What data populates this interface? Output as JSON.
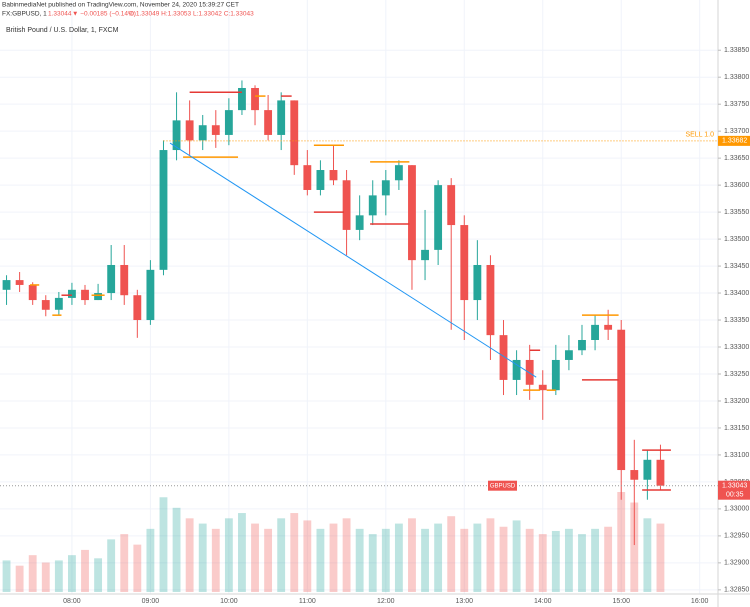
{
  "header": {
    "published": "BabinmediaNet published on TradingView.com, November 24, 2020 15:39:27 CET",
    "symbol": "FX:GBPUSD, 1",
    "price": "1.33044",
    "change": "▼ −0.00185 (−0.14%)",
    "ohlc": "O:1.33049 H:1.33053 L:1.33042 C:1.33043"
  },
  "chart_data": {
    "type": "candlestick",
    "title": "British Pound / U.S. Dollar, 1, FXCM",
    "x": [
      "07:10",
      "07:20",
      "07:30",
      "07:40",
      "07:50",
      "08:00",
      "08:10",
      "08:20",
      "08:30",
      "08:40",
      "08:50",
      "09:00",
      "09:10",
      "09:20",
      "09:30",
      "09:40",
      "09:50",
      "10:00",
      "10:10",
      "10:20",
      "10:30",
      "10:40",
      "10:50",
      "11:00",
      "11:10",
      "11:20",
      "11:30",
      "11:40",
      "11:50",
      "12:00",
      "12:10",
      "12:20",
      "12:30",
      "12:40",
      "12:50",
      "13:00",
      "13:10",
      "13:20",
      "13:30",
      "13:40",
      "13:50",
      "14:00",
      "14:10",
      "14:20",
      "14:30",
      "14:40",
      "14:50",
      "15:00",
      "15:10",
      "15:20",
      "15:30"
    ],
    "open": [
      1.33406,
      1.33424,
      1.33415,
      1.33387,
      1.33369,
      1.33391,
      1.33406,
      1.33387,
      1.334,
      1.33452,
      1.33396,
      1.3335,
      1.33443,
      1.33665,
      1.3372,
      1.33683,
      1.33711,
      1.33693,
      1.33739,
      1.3378,
      1.33739,
      1.33693,
      1.33757,
      1.33637,
      1.33591,
      1.33628,
      1.33609,
      1.33517,
      1.33544,
      1.33581,
      1.33609,
      1.33637,
      1.33461,
      1.3348,
      1.336,
      1.33526,
      1.33387,
      1.33452,
      1.33322,
      1.33239,
      1.33276,
      1.3323,
      1.3322,
      1.33276,
      1.33294,
      1.33313,
      1.33341,
      1.33332,
      1.33072,
      1.33054,
      1.33091
    ],
    "high": [
      1.33433,
      1.33439,
      1.3342,
      1.33396,
      1.33402,
      1.33419,
      1.33415,
      1.33417,
      1.33489,
      1.33489,
      1.33406,
      1.33461,
      1.33683,
      1.33772,
      1.33757,
      1.3373,
      1.33739,
      1.33761,
      1.33794,
      1.33785,
      1.33767,
      1.33772,
      1.33757,
      1.33665,
      1.33646,
      1.33674,
      1.33628,
      1.33581,
      1.33609,
      1.33628,
      1.33646,
      1.33637,
      1.33554,
      1.33609,
      1.33613,
      1.33544,
      1.33498,
      1.3347,
      1.3335,
      1.33294,
      1.33304,
      1.33257,
      1.33304,
      1.33322,
      1.33341,
      1.33359,
      1.33369,
      1.3335,
      1.33128,
      1.33109,
      1.33119
    ],
    "low": [
      1.33378,
      1.33402,
      1.33378,
      1.33357,
      1.33359,
      1.33378,
      1.33378,
      1.33387,
      1.33387,
      1.33378,
      1.33317,
      1.33341,
      1.33433,
      1.33646,
      1.33656,
      1.33665,
      1.33669,
      1.33674,
      1.3373,
      1.33711,
      1.33683,
      1.33665,
      1.33619,
      1.33581,
      1.33581,
      1.336,
      1.3347,
      1.33498,
      1.33526,
      1.33544,
      1.33591,
      1.33406,
      1.33424,
      1.33452,
      1.33332,
      1.33313,
      1.3335,
      1.33276,
      1.33211,
      1.33211,
      1.33202,
      1.33165,
      1.33211,
      1.33257,
      1.33285,
      1.33294,
      1.33313,
      1.33017,
      1.32933,
      1.33017,
      1.33035
    ],
    "close": [
      1.33424,
      1.33415,
      1.33387,
      1.33369,
      1.33391,
      1.33406,
      1.33387,
      1.334,
      1.33452,
      1.33396,
      1.3335,
      1.33443,
      1.33665,
      1.3372,
      1.33683,
      1.33711,
      1.33693,
      1.33739,
      1.3378,
      1.33739,
      1.33693,
      1.33757,
      1.33637,
      1.33591,
      1.33628,
      1.33609,
      1.33517,
      1.33544,
      1.33581,
      1.33609,
      1.33637,
      1.33461,
      1.3348,
      1.336,
      1.33526,
      1.33387,
      1.33452,
      1.33322,
      1.33239,
      1.33276,
      1.3323,
      1.3322,
      1.33276,
      1.33294,
      1.33313,
      1.33341,
      1.33332,
      1.33072,
      1.33054,
      1.33091,
      1.33043
    ],
    "volume": [
      30,
      25,
      35,
      28,
      30,
      35,
      40,
      32,
      50,
      55,
      45,
      60,
      90,
      80,
      70,
      65,
      60,
      70,
      75,
      65,
      60,
      70,
      75,
      68,
      60,
      65,
      70,
      60,
      55,
      60,
      65,
      70,
      60,
      65,
      72,
      60,
      65,
      70,
      62,
      68,
      60,
      55,
      58,
      60,
      55,
      60,
      62,
      95,
      85,
      70,
      65
    ],
    "up_color": "#26a69a",
    "down_color": "#ef5350",
    "xlim": [
      "07:05",
      "16:14"
    ],
    "xticks": [
      "08:00",
      "09:00",
      "10:00",
      "11:00",
      "12:00",
      "13:00",
      "14:00",
      "15:00",
      "16:00"
    ],
    "ylim": [
      1.32846,
      1.33906
    ],
    "yticks": [
      {
        "value": 1.3285,
        "label": "1.32850"
      },
      {
        "value": 1.329,
        "label": "1.32900"
      },
      {
        "value": 1.3295,
        "label": "1.32950"
      },
      {
        "value": 1.33,
        "label": "1.33000"
      },
      {
        "value": 1.3305,
        "label": "1.33050"
      },
      {
        "value": 1.331,
        "label": "1.33100"
      },
      {
        "value": 1.3315,
        "label": "1.33150"
      },
      {
        "value": 1.332,
        "label": "1.33200"
      },
      {
        "value": 1.3325,
        "label": "1.33250"
      },
      {
        "value": 1.333,
        "label": "1.33300"
      },
      {
        "value": 1.3335,
        "label": "1.33350"
      },
      {
        "value": 1.334,
        "label": "1.33400"
      },
      {
        "value": 1.3345,
        "label": "1.33450"
      },
      {
        "value": 1.335,
        "label": "1.33500"
      },
      {
        "value": 1.3355,
        "label": "1.33550"
      },
      {
        "value": 1.336,
        "label": "1.33600"
      },
      {
        "value": 1.3365,
        "label": "1.33650"
      },
      {
        "value": 1.337,
        "label": "1.33700"
      },
      {
        "value": 1.3375,
        "label": "1.33750"
      },
      {
        "value": 1.338,
        "label": "1.33800"
      },
      {
        "value": 1.3385,
        "label": "1.33850"
      }
    ],
    "grid": true,
    "trend_line": {
      "start": "09:15",
      "end": "13:55",
      "from": 1.33678,
      "to": 1.33244,
      "color": "#2196f3"
    },
    "levels": [
      {
        "start": "07:28",
        "end": "07:35",
        "price": 1.33415,
        "color": "#ff9800"
      },
      {
        "start": "07:45",
        "end": "07:52",
        "price": 1.33359,
        "color": "#ff9800"
      },
      {
        "start": "07:52",
        "end": "08:00",
        "price": 1.33396,
        "color": "#e53935"
      },
      {
        "start": "08:15",
        "end": "08:25",
        "price": 1.33396,
        "color": "#ff9800"
      },
      {
        "start": "09:30",
        "end": "10:10",
        "price": 1.33772,
        "color": "#e53935"
      },
      {
        "start": "09:25",
        "end": "10:07",
        "price": 1.33652,
        "color": "#ff9800"
      },
      {
        "start": "10:20",
        "end": "10:28",
        "price": 1.33765,
        "color": "#ff9800"
      },
      {
        "start": "10:40",
        "end": "10:48",
        "price": 1.33765,
        "color": "#e53935"
      },
      {
        "start": "11:05",
        "end": "11:28",
        "price": 1.33674,
        "color": "#ff9800"
      },
      {
        "start": "11:05",
        "end": "11:28",
        "price": 1.3355,
        "color": "#e53935"
      },
      {
        "start": "11:48",
        "end": "12:18",
        "price": 1.33643,
        "color": "#ff9800"
      },
      {
        "start": "11:48",
        "end": "12:18",
        "price": 1.33528,
        "color": "#e53935"
      },
      {
        "start": "13:45",
        "end": "13:58",
        "price": 1.3322,
        "color": "#ff9800"
      },
      {
        "start": "13:50",
        "end": "13:58",
        "price": 1.33294,
        "color": "#e53935"
      },
      {
        "start": "14:03",
        "end": "14:10",
        "price": 1.3322,
        "color": "#ff9800"
      },
      {
        "start": "14:30",
        "end": "14:58",
        "price": 1.33359,
        "color": "#ff9800"
      },
      {
        "start": "14:30",
        "end": "14:58",
        "price": 1.33239,
        "color": "#e53935"
      },
      {
        "start": "15:16",
        "end": "15:38",
        "price": 1.33109,
        "color": "#e53935"
      },
      {
        "start": "15:16",
        "end": "15:38",
        "price": 1.33035,
        "color": "#e53935"
      }
    ],
    "order": {
      "start": "09:10",
      "label": "SELL 1.0",
      "value": 1.33682,
      "value_label": "1.33682",
      "color": "#ff9800"
    },
    "last_price": {
      "value": 1.33043,
      "value_label": "1.33043",
      "symbol": "GBPUSD",
      "countdown": "00:35",
      "color": "#ef5350"
    }
  }
}
